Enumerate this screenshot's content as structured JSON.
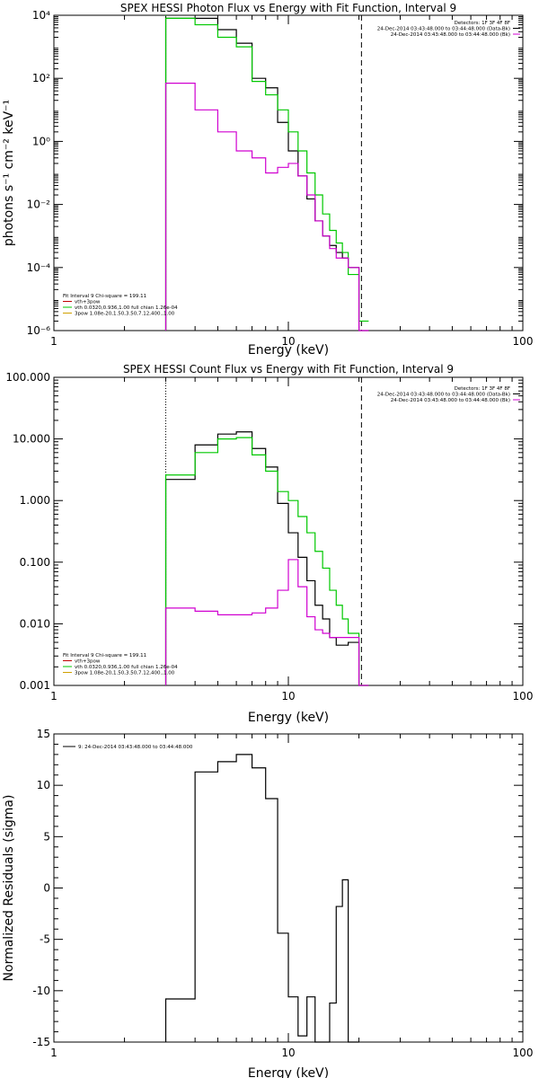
{
  "chart_data": [
    {
      "type": "line",
      "title": "SPEX HESSI Photon Flux vs Energy with Fit Function, Interval 9",
      "xlabel": "Energy (keV)",
      "ylabel": "photons s⁻¹ cm⁻² keV⁻¹",
      "xscale": "log",
      "yscale": "log",
      "xlim": [
        1,
        100
      ],
      "ylim": [
        1e-06,
        10000.0
      ],
      "x_ticks": [
        {
          "value": 1,
          "label": "1"
        },
        {
          "value": 10,
          "label": "10"
        },
        {
          "value": 100,
          "label": "100"
        }
      ],
      "y_ticks": [
        {
          "value": 1e-06,
          "label": "10⁻⁶"
        },
        {
          "value": 0.0001,
          "label": "10⁻⁴"
        },
        {
          "value": 0.01,
          "label": "10⁻²"
        },
        {
          "value": 1,
          "label": "10⁰"
        },
        {
          "value": 100,
          "label": "10²"
        },
        {
          "value": 10000,
          "label": "10⁴"
        }
      ],
      "vlines": [
        {
          "x": 3.0,
          "style": "dotted",
          "color": "#00c800"
        },
        {
          "x": 20.5,
          "style": "dashed",
          "color": "#000000"
        }
      ],
      "header_right": [
        "Detectors: 1F 3F 4F 8F",
        "24-Dec-2014 03:43:48.000 to 03:44:48.000 (Data-Bk)",
        "24-Dec-2014 03:43:48.000 to 03:44:48.000 (Bk)"
      ],
      "header_right_colors": [
        "#000000",
        "#000000",
        "#d000d0"
      ],
      "legend": [
        "Fit Interval 9   Chi-square = 199.11",
        "vth+3pow",
        "vth 0.0320,0.936,1.00  full chian 1.26e-04",
        "3pow 1.08e-20,1.50,3.50,7.12,400.,1.00"
      ],
      "legend_colors": [
        "#000000",
        "#c00000",
        "#00c800",
        "#d0a000"
      ],
      "bin_edges": [
        3.0,
        4.0,
        5.0,
        6.0,
        7.0,
        8.0,
        9.0,
        10.0,
        11.0,
        12.0,
        13.0,
        14.0,
        15.0,
        16.0,
        17.0,
        18.0,
        20.0,
        22.0
      ],
      "series": [
        {
          "color": "#000000",
          "values": [
            8000,
            8000,
            3500,
            1300,
            100,
            50,
            4,
            0.5,
            0.08,
            0.015,
            0.003,
            0.001,
            0.0005,
            0.0003,
            0.0002,
            0.0001,
            1e-06
          ]
        },
        {
          "color": "#00c800",
          "values": [
            8000,
            5000,
            2000,
            1000,
            80,
            30,
            10,
            2,
            0.5,
            0.1,
            0.02,
            0.005,
            0.0015,
            0.0006,
            0.0003,
            6e-05,
            2e-06
          ]
        },
        {
          "color": "#d000d0",
          "values": [
            70,
            10,
            2,
            0.5,
            0.3,
            0.1,
            0.15,
            0.2,
            0.08,
            0.02,
            0.003,
            0.001,
            0.0004,
            0.0002,
            0.0002,
            0.0001,
            1e-06
          ]
        }
      ]
    },
    {
      "type": "line",
      "title": "SPEX HESSI Count Flux vs Energy with Fit Function, Interval 9",
      "xlabel": "Energy (keV)",
      "ylabel": "",
      "xscale": "log",
      "yscale": "log",
      "xlim": [
        1,
        100
      ],
      "ylim": [
        0.001,
        100
      ],
      "x_ticks": [
        {
          "value": 1,
          "label": "1"
        },
        {
          "value": 10,
          "label": "10"
        },
        {
          "value": 100,
          "label": "100"
        }
      ],
      "y_ticks": [
        {
          "value": 0.001,
          "label": "0.001"
        },
        {
          "value": 0.01,
          "label": "0.010"
        },
        {
          "value": 0.1,
          "label": "0.100"
        },
        {
          "value": 1,
          "label": "1.000"
        },
        {
          "value": 10,
          "label": "10.000"
        },
        {
          "value": 100,
          "label": "100.000"
        }
      ],
      "vlines": [
        {
          "x": 3.0,
          "style": "dotted",
          "color": "#000000"
        },
        {
          "x": 20.5,
          "style": "dashed",
          "color": "#000000"
        }
      ],
      "header_right": [
        "Detectors: 1F 3F 4F 8F",
        "24-Dec-2014 03:43:48.000 to 03:44:48.000 (Data-Bk)",
        "24-Dec-2014 03:43:48.000 to 03:44:48.000 (Bk)"
      ],
      "header_right_colors": [
        "#000000",
        "#000000",
        "#d000d0"
      ],
      "legend": [
        "Fit Interval 9   Chi-square = 199.11",
        "vth+3pow",
        "vth 0.0320,0.936,1.00  full chian 1.26e-04",
        "3pow 1.08e-20,1.50,3.50,7.12,400.,1.00"
      ],
      "legend_colors": [
        "#000000",
        "#c00000",
        "#00c800",
        "#d0a000"
      ],
      "bin_edges": [
        3.0,
        4.0,
        5.0,
        6.0,
        7.0,
        8.0,
        9.0,
        10.0,
        11.0,
        12.0,
        13.0,
        14.0,
        15.0,
        16.0,
        17.0,
        18.0,
        20.0,
        22.0
      ],
      "series": [
        {
          "color": "#000000",
          "values": [
            2.2,
            8.0,
            12.0,
            13.0,
            7.0,
            3.5,
            0.9,
            0.3,
            0.12,
            0.05,
            0.02,
            0.012,
            0.006,
            0.0045,
            0.0045,
            0.005,
            0.001
          ]
        },
        {
          "color": "#00c800",
          "values": [
            2.6,
            6.0,
            10.0,
            10.5,
            5.5,
            3.0,
            1.4,
            1.0,
            0.55,
            0.3,
            0.15,
            0.08,
            0.035,
            0.02,
            0.012,
            0.007,
            0.001
          ]
        },
        {
          "color": "#d000d0",
          "values": [
            0.018,
            0.016,
            0.014,
            0.014,
            0.015,
            0.018,
            0.035,
            0.11,
            0.04,
            0.013,
            0.008,
            0.007,
            0.006,
            0.006,
            0.006,
            0.006,
            0.001
          ]
        }
      ]
    },
    {
      "type": "line",
      "title": "",
      "xlabel": "Energy (keV)",
      "ylabel": "Normalized Residuals (sigma)",
      "xscale": "log",
      "yscale": "linear",
      "xlim": [
        1,
        100
      ],
      "ylim": [
        -15,
        15
      ],
      "x_ticks": [
        {
          "value": 1,
          "label": "1"
        },
        {
          "value": 10,
          "label": "10"
        },
        {
          "value": 100,
          "label": "100"
        }
      ],
      "y_ticks": [
        {
          "value": -15,
          "label": "-15"
        },
        {
          "value": -10,
          "label": "-10"
        },
        {
          "value": -5,
          "label": "-5"
        },
        {
          "value": 0,
          "label": "0"
        },
        {
          "value": 5,
          "label": "5"
        },
        {
          "value": 10,
          "label": "10"
        },
        {
          "value": 15,
          "label": "15"
        }
      ],
      "vlines": [],
      "header_right": [],
      "header_right_colors": [],
      "legend": [
        "9: 24-Dec-2014 03:43:48.000 to 03:44:48.000"
      ],
      "legend_colors": [
        "#000000"
      ],
      "bin_edges": [
        3.0,
        4.0,
        5.0,
        6.0,
        7.0,
        8.0,
        9.0,
        10.0,
        11.0,
        12.0,
        13.0,
        14.0,
        15.0,
        16.0,
        17.0,
        18.0,
        20.0
      ],
      "series": [
        {
          "color": "#000000",
          "values": [
            -10.8,
            11.3,
            12.3,
            13.0,
            11.7,
            8.7,
            -4.4,
            -10.6,
            -14.4,
            -10.6,
            -15.0,
            -15.0,
            -11.2,
            -1.8,
            0.8,
            -15.0
          ]
        }
      ]
    }
  ]
}
